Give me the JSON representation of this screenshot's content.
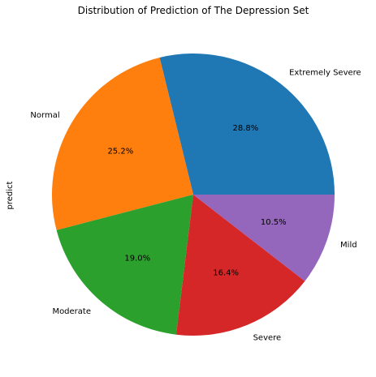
{
  "chart_data": {
    "type": "pie",
    "title": "Distribution of Prediction of The Depression Set",
    "ylabel": "predict",
    "start_angle_deg": 0,
    "direction": "counterclockwise",
    "slices": [
      {
        "label": "Extremely Severe",
        "percent": 28.8,
        "percent_label": "28.8%",
        "color": "#1f77b4"
      },
      {
        "label": "Normal",
        "percent": 25.2,
        "percent_label": "25.2%",
        "color": "#ff7f0e"
      },
      {
        "label": "Moderate",
        "percent": 19.0,
        "percent_label": "19.0%",
        "color": "#2ca02c"
      },
      {
        "label": "Severe",
        "percent": 16.4,
        "percent_label": "16.4%",
        "color": "#d62728"
      },
      {
        "label": "Mild",
        "percent": 10.5,
        "percent_label": "10.5%",
        "color": "#9467bd"
      }
    ]
  }
}
